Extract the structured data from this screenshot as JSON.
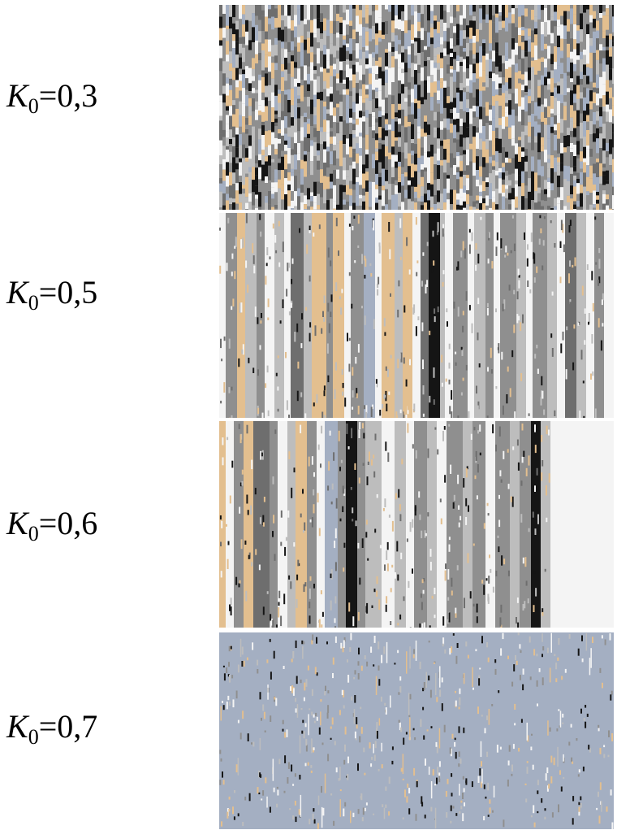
{
  "panels": [
    {
      "symbol": "K",
      "subscript": "0",
      "value_text": "=0,3",
      "k0": 0.3
    },
    {
      "symbol": "K",
      "subscript": "0",
      "value_text": "=0,5",
      "k0": 0.5
    },
    {
      "symbol": "K",
      "subscript": "0",
      "value_text": "=0,6",
      "k0": 0.6
    },
    {
      "symbol": "K",
      "subscript": "0",
      "value_text": "=0,7",
      "k0": 0.7
    }
  ],
  "palette": {
    "gray_mid": "#8f8f8f",
    "gray_dark": "#6e6e6e",
    "gray_light": "#bdbdbd",
    "blue_gray": "#a4afc2",
    "tan": "#e3bf8f",
    "white": "#f4f4f4",
    "black": "#151515"
  }
}
